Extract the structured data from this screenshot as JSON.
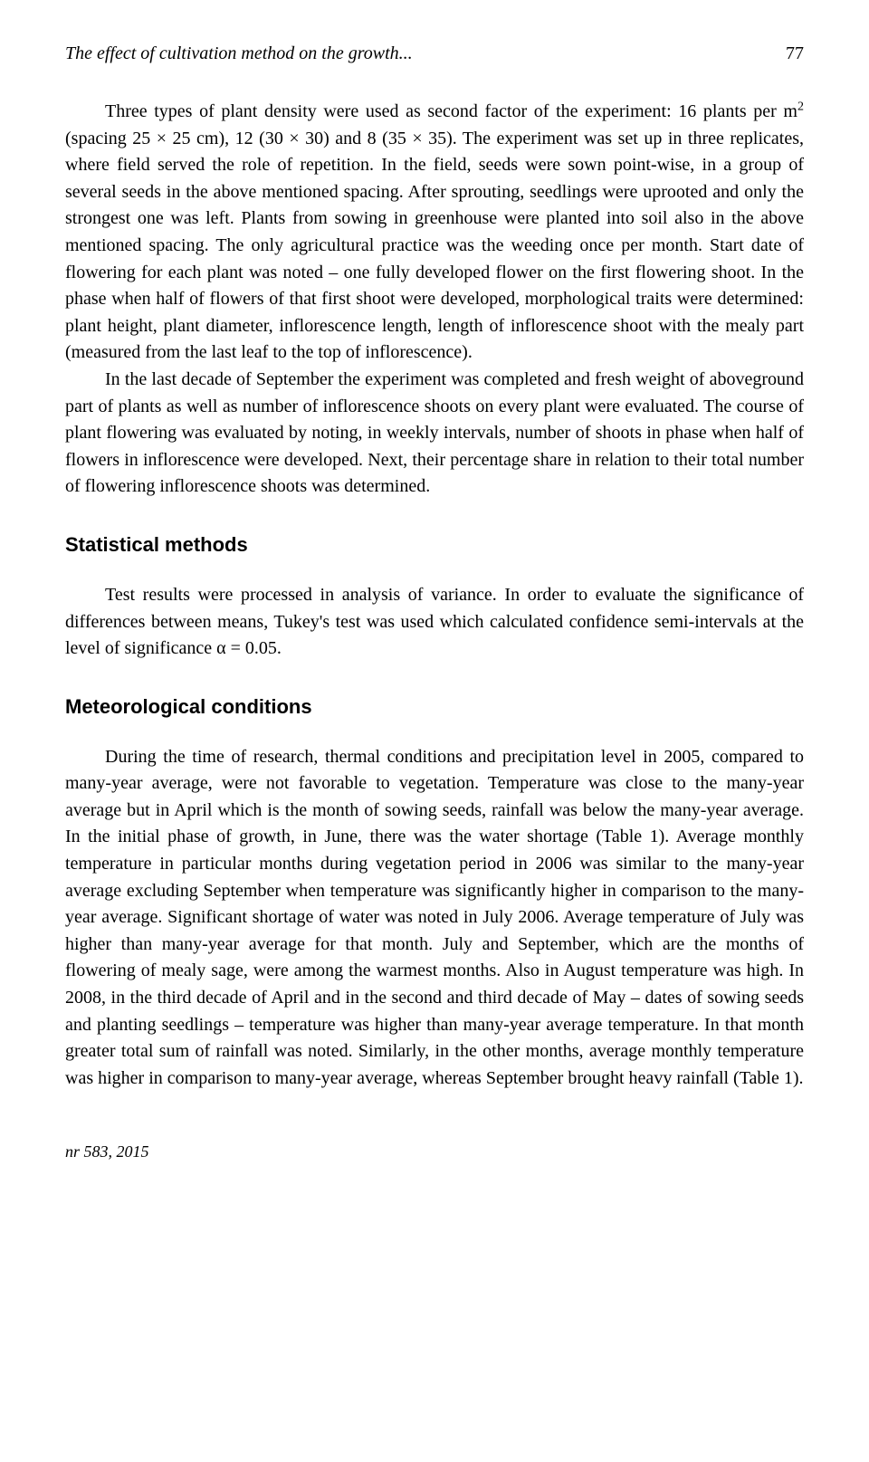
{
  "header": {
    "running_title": "The effect of cultivation method on the growth...",
    "page_number": "77"
  },
  "paragraphs": {
    "p1_part_a": "Three types of plant density were used as second factor of the experiment: 16 plants per m",
    "p1_sup": "2",
    "p1_part_b": " (spacing 25 × 25 cm), 12 (30 × 30) and 8 (35 × 35). The experiment was set up in three replicates, where field served the role of repetition. In the field, seeds were sown point-wise, in a group of several seeds in the above mentioned spacing. After sprouting, seedlings were uprooted and only the strongest one was left. Plants from sowing in greenhouse were planted into soil also in the above mentioned spacing. The only agricultural practice was the weeding once per month. Start date of flowering for each plant was noted – one fully developed flower on the first flowering shoot. In the phase when half of flowers of that first shoot were developed, morphological traits were determined: plant height, plant diameter, inflorescence length, length of inflorescence shoot with the mealy part (measured from the last leaf to the top of inflorescence).",
    "p2": "In the last decade of September the experiment was completed and fresh weight of aboveground part of plants as well as number of inflorescence shoots on every plant were evaluated. The course of plant flowering was evaluated by noting, in weekly intervals, number of shoots in phase when half of flowers in inflorescence were developed. Next, their percentage share in relation to their total number of flowering inflorescence shoots was determined.",
    "p3": "Test results were processed in analysis of variance. In order to evaluate the significance of differences between means, Tukey's test was used which calculated confidence semi-intervals at the level of significance α = 0.05.",
    "p4": "During the time of research, thermal conditions and precipitation level in 2005, compared to many-year average, were not favorable to vegetation. Temperature was close to the many-year average but in April which is the month of sowing seeds, rainfall was below the many-year average. In the initial phase of growth, in June, there was the water shortage (Table 1). Average monthly temperature in particular months during vegetation period in 2006 was similar to the many-year average excluding September when temperature was significantly higher in comparison to the many-year average. Significant shortage of water was noted in July 2006. Average temperature of July was higher than many-year average for that month. July and September, which are the months of flowering of mealy sage, were among the warmest months. Also in August temperature was high. In 2008, in the third decade of April and in the second and third decade of May – dates of sowing seeds and planting seedlings – temperature was higher than many-year average temperature. In that month greater total sum of rainfall was noted. Similarly, in the other months, average monthly temperature was higher in comparison to many-year average, whereas September brought heavy rainfall (Table 1)."
  },
  "headings": {
    "statistical": "Statistical methods",
    "meteorological": "Meteorological conditions"
  },
  "footer": {
    "issue": "nr 583, 2015"
  }
}
